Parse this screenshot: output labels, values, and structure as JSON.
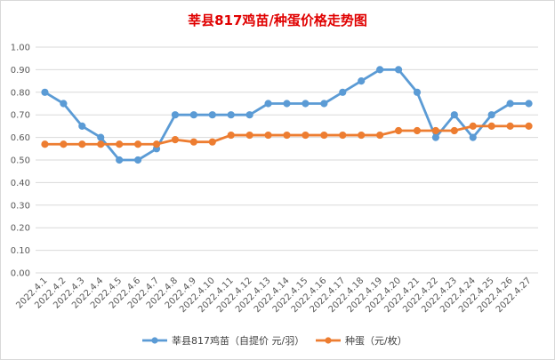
{
  "chart_data": {
    "type": "line",
    "title": "莘县817鸡苗/种蛋价格走势图",
    "title_color": "#e00000",
    "xlabel": "",
    "ylabel": "",
    "ylim": [
      0,
      1.0
    ],
    "yticks": [
      "0.00",
      "0.10",
      "0.20",
      "0.30",
      "0.40",
      "0.50",
      "0.60",
      "0.70",
      "0.80",
      "0.90",
      "1.00"
    ],
    "grid": true,
    "legend_position": "bottom",
    "categories": [
      "2022.4.1",
      "2022.4.2",
      "2022.4.3",
      "2022.4.4",
      "2022.4.5",
      "2022.4.6",
      "2022.4.7",
      "2022.4.8",
      "2022.4.9",
      "2022.4.10",
      "2022.4.11",
      "2022.4.12",
      "2022.4.13",
      "2022.4.14",
      "2022.4.15",
      "2022.4.16",
      "2022.4.17",
      "2022.4.18",
      "2022.4.19",
      "2022.4.20",
      "2022.4.21",
      "2022.4.22",
      "2022.4.23",
      "2022.4.24",
      "2022.4.25",
      "2022.4.26",
      "2022.4.27"
    ],
    "series": [
      {
        "name": "莘县817鸡苗（自提价 元/羽）",
        "color": "#5b9bd5",
        "values": [
          0.8,
          0.75,
          0.65,
          0.6,
          0.5,
          0.5,
          0.55,
          0.7,
          0.7,
          0.7,
          0.7,
          0.7,
          0.75,
          0.75,
          0.75,
          0.75,
          0.8,
          0.85,
          0.9,
          0.9,
          0.8,
          0.6,
          0.7,
          0.6,
          0.7,
          0.75,
          0.75
        ]
      },
      {
        "name": "种蛋（元/枚）",
        "color": "#ed7d31",
        "values": [
          0.57,
          0.57,
          0.57,
          0.57,
          0.57,
          0.57,
          0.57,
          0.59,
          0.58,
          0.58,
          0.61,
          0.61,
          0.61,
          0.61,
          0.61,
          0.61,
          0.61,
          0.61,
          0.61,
          0.63,
          0.63,
          0.63,
          0.63,
          0.65,
          0.65,
          0.65,
          0.65
        ]
      }
    ]
  }
}
